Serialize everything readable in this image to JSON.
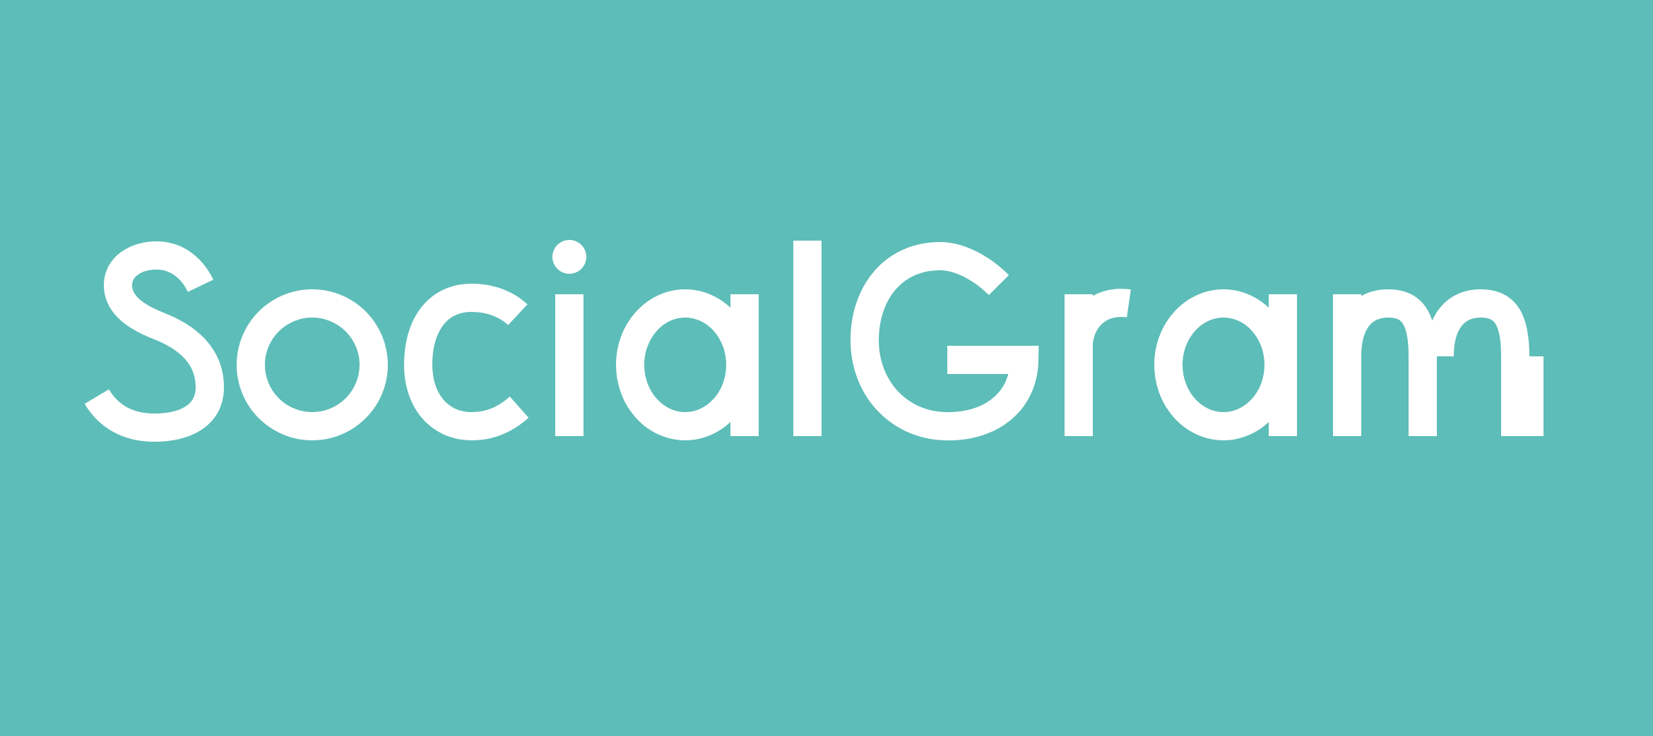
{
  "brand": {
    "name": "SocialGram",
    "background_color": "#5DBDB8",
    "text_color": "#FFFFFF"
  }
}
